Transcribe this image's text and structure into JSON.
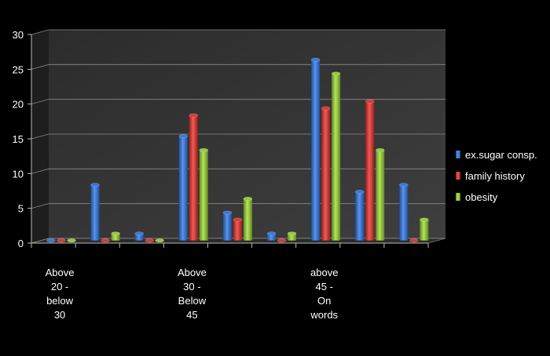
{
  "chart_data": {
    "type": "bar",
    "ylim": [
      0,
      30
    ],
    "yticks": [
      0,
      5,
      10,
      15,
      20,
      25,
      30
    ],
    "grid": true,
    "legend_position": "right",
    "categories": [
      "",
      "",
      "",
      "",
      "",
      "",
      "",
      "",
      ""
    ],
    "group_labels": [
      {
        "lines": [
          "Above",
          "20 -",
          "below",
          "30"
        ],
        "at_group": 0.5
      },
      {
        "lines": [
          "Above",
          "30  -",
          "Below",
          "45"
        ],
        "at_group": 3.5
      },
      {
        "lines": [
          "above",
          "45   -",
          "On",
          "words"
        ],
        "at_group": 6.5
      }
    ],
    "series": [
      {
        "name": "ex.sugar consp.",
        "color": "#3b78d8",
        "values": [
          0,
          8,
          1,
          15,
          4,
          1,
          26,
          7,
          8
        ]
      },
      {
        "name": "family history",
        "color": "#d93a35",
        "values": [
          0,
          0,
          0,
          18,
          3,
          0,
          19,
          20,
          0
        ]
      },
      {
        "name": "obesity",
        "color": "#96c93d",
        "values": [
          0,
          1,
          0,
          13,
          6,
          1,
          24,
          13,
          3
        ]
      }
    ]
  }
}
